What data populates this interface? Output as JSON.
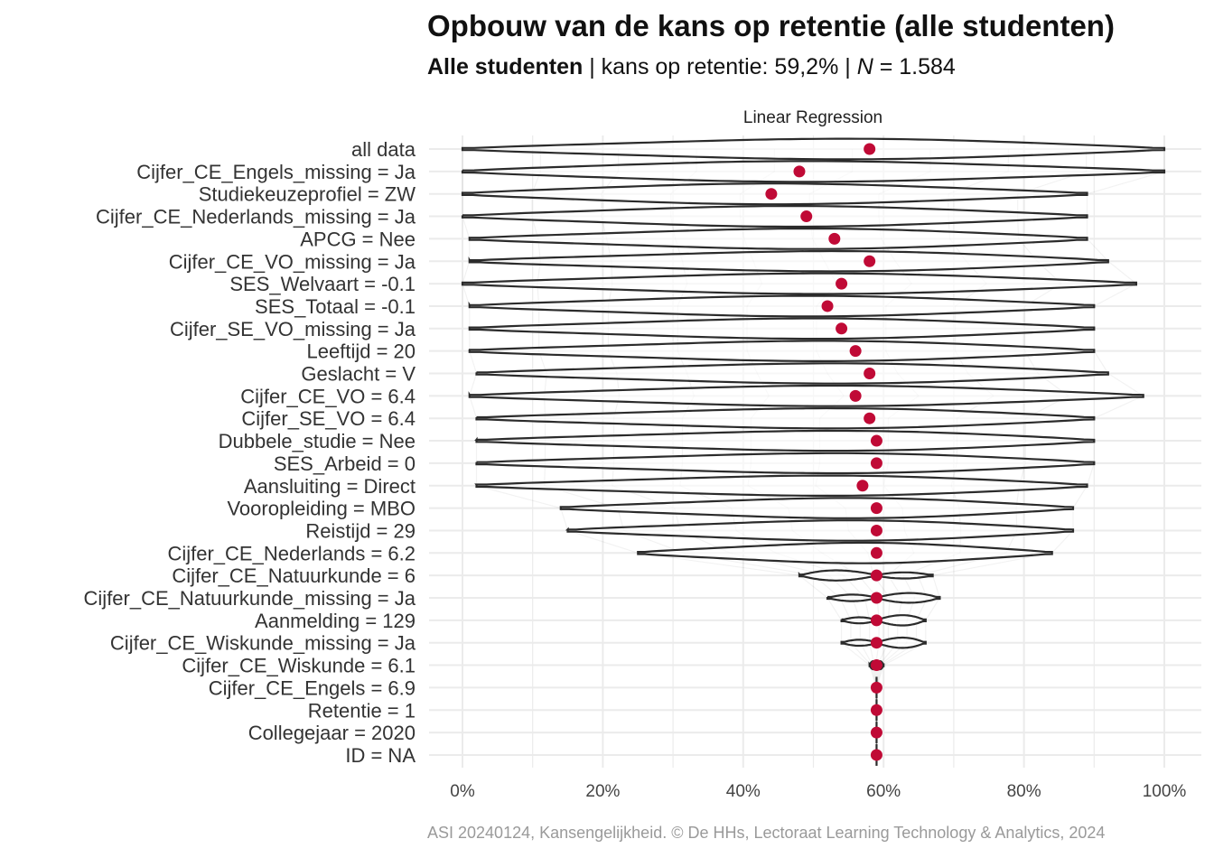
{
  "title": "Opbouw van de kans op retentie (alle studenten)",
  "subtitle": {
    "group": "Alle studenten",
    "sep1": " | kans op retentie: 59,2% | ",
    "n_symbol": "N",
    "n_text": " = 1.584"
  },
  "caption": "ASI 20240124, Kansengelijkheid. © De HHs, Lectoraat Learning Technology & Analytics, 2024",
  "colors": {
    "point": "#c00a36",
    "violin": "#2b2b2b",
    "grid": "#ebebeb"
  },
  "chart_data": {
    "type": "violin",
    "facet": "Linear Regression",
    "xlabel": "",
    "ylabel": "",
    "xlim": [
      0,
      1
    ],
    "x_ticks": [
      "0%",
      "20%",
      "40%",
      "60%",
      "80%",
      "100%"
    ],
    "grid": true,
    "series": [
      {
        "label": "all data",
        "mean": 0.58,
        "min": 0.0,
        "max": 1.0
      },
      {
        "label": "Cijfer_CE_Engels_missing = Ja",
        "mean": 0.48,
        "min": 0.0,
        "max": 1.0
      },
      {
        "label": "Studiekeuzeprofiel = ZW",
        "mean": 0.44,
        "min": 0.0,
        "max": 0.89
      },
      {
        "label": "Cijfer_CE_Nederlands_missing = Ja",
        "mean": 0.49,
        "min": 0.0,
        "max": 0.89
      },
      {
        "label": "APCG = Nee",
        "mean": 0.53,
        "min": 0.01,
        "max": 0.89
      },
      {
        "label": "Cijfer_CE_VO_missing = Ja",
        "mean": 0.58,
        "min": 0.01,
        "max": 0.92
      },
      {
        "label": "SES_Welvaart = -0.1",
        "mean": 0.54,
        "min": 0.0,
        "max": 0.96
      },
      {
        "label": "SES_Totaal = -0.1",
        "mean": 0.52,
        "min": 0.01,
        "max": 0.9
      },
      {
        "label": "Cijfer_SE_VO_missing = Ja",
        "mean": 0.54,
        "min": 0.01,
        "max": 0.9
      },
      {
        "label": "Leeftijd = 20",
        "mean": 0.56,
        "min": 0.01,
        "max": 0.9
      },
      {
        "label": "Geslacht = V",
        "mean": 0.58,
        "min": 0.02,
        "max": 0.92
      },
      {
        "label": "Cijfer_CE_VO = 6.4",
        "mean": 0.56,
        "min": 0.01,
        "max": 0.97
      },
      {
        "label": "Cijfer_SE_VO = 6.4",
        "mean": 0.58,
        "min": 0.02,
        "max": 0.9
      },
      {
        "label": "Dubbele_studie = Nee",
        "mean": 0.59,
        "min": 0.02,
        "max": 0.9
      },
      {
        "label": "SES_Arbeid = 0",
        "mean": 0.59,
        "min": 0.02,
        "max": 0.9
      },
      {
        "label": "Aansluiting = Direct",
        "mean": 0.57,
        "min": 0.02,
        "max": 0.89
      },
      {
        "label": "Vooropleiding = MBO",
        "mean": 0.59,
        "min": 0.14,
        "max": 0.87
      },
      {
        "label": "Reistijd = 29",
        "mean": 0.59,
        "min": 0.15,
        "max": 0.87
      },
      {
        "label": "Cijfer_CE_Nederlands = 6.2",
        "mean": 0.59,
        "min": 0.25,
        "max": 0.84
      },
      {
        "label": "Cijfer_CE_Natuurkunde = 6",
        "mean": 0.59,
        "min": 0.48,
        "max": 0.67
      },
      {
        "label": "Cijfer_CE_Natuurkunde_missing = Ja",
        "mean": 0.59,
        "min": 0.52,
        "max": 0.68
      },
      {
        "label": "Aanmelding = 129",
        "mean": 0.59,
        "min": 0.54,
        "max": 0.66
      },
      {
        "label": "Cijfer_CE_Wiskunde_missing = Ja",
        "mean": 0.59,
        "min": 0.54,
        "max": 0.66
      },
      {
        "label": "Cijfer_CE_Wiskunde = 6.1",
        "mean": 0.59,
        "min": 0.58,
        "max": 0.6
      },
      {
        "label": "Cijfer_CE_Engels = 6.9",
        "mean": 0.59,
        "min": 0.59,
        "max": 0.59
      },
      {
        "label": "Retentie = 1",
        "mean": 0.59,
        "min": 0.59,
        "max": 0.59
      },
      {
        "label": "Collegejaar = 2020",
        "mean": 0.59,
        "min": 0.59,
        "max": 0.59
      },
      {
        "label": "ID = NA",
        "mean": 0.59,
        "min": 0.59,
        "max": 0.59
      }
    ]
  }
}
